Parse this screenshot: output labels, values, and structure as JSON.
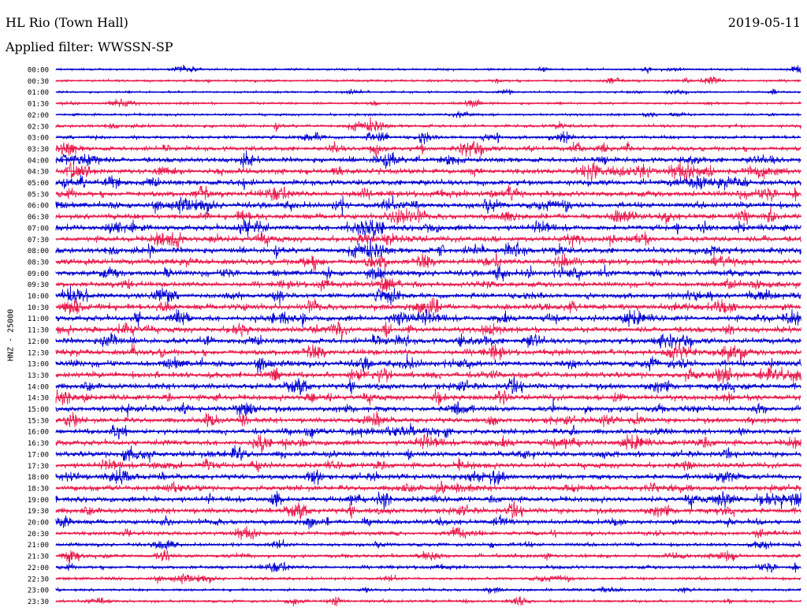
{
  "header": {
    "station": "HL Rio (Town Hall)",
    "date": "2019-05-11",
    "filter": "Applied filter: WWSSN-SP"
  },
  "chart_data": {
    "type": "line",
    "title": "HL Rio (Town Hall)",
    "ylabel": "HNZ - 25000",
    "rows": [
      "00:00",
      "00:30",
      "01:00",
      "01:30",
      "02:00",
      "02:30",
      "03:00",
      "03:30",
      "04:00",
      "04:30",
      "05:00",
      "05:30",
      "06:00",
      "06:30",
      "07:00",
      "07:30",
      "08:00",
      "08:30",
      "09:00",
      "09:30",
      "10:00",
      "10:30",
      "11:00",
      "11:30",
      "12:00",
      "12:30",
      "13:00",
      "13:30",
      "14:00",
      "14:30",
      "15:00",
      "15:30",
      "16:00",
      "16:30",
      "17:00",
      "17:30",
      "18:00",
      "18:30",
      "19:00",
      "19:30",
      "20:00",
      "20:30",
      "21:00",
      "21:30",
      "22:00",
      "22:30",
      "23:00",
      "23:30"
    ],
    "row_amplitude_level": [
      0.15,
      0.2,
      0.15,
      0.2,
      0.2,
      0.35,
      0.4,
      0.6,
      0.7,
      0.75,
      0.75,
      0.8,
      0.8,
      0.75,
      0.8,
      0.8,
      0.8,
      0.8,
      0.8,
      0.7,
      0.75,
      0.8,
      0.8,
      0.8,
      0.8,
      0.8,
      0.85,
      0.8,
      0.8,
      0.75,
      0.75,
      0.7,
      0.7,
      0.75,
      0.75,
      0.75,
      0.75,
      0.7,
      0.75,
      0.75,
      0.6,
      0.5,
      0.4,
      0.45,
      0.4,
      0.3,
      0.25,
      0.25
    ],
    "colors": [
      "#0000d0",
      "#e8194b"
    ],
    "grid": false
  }
}
